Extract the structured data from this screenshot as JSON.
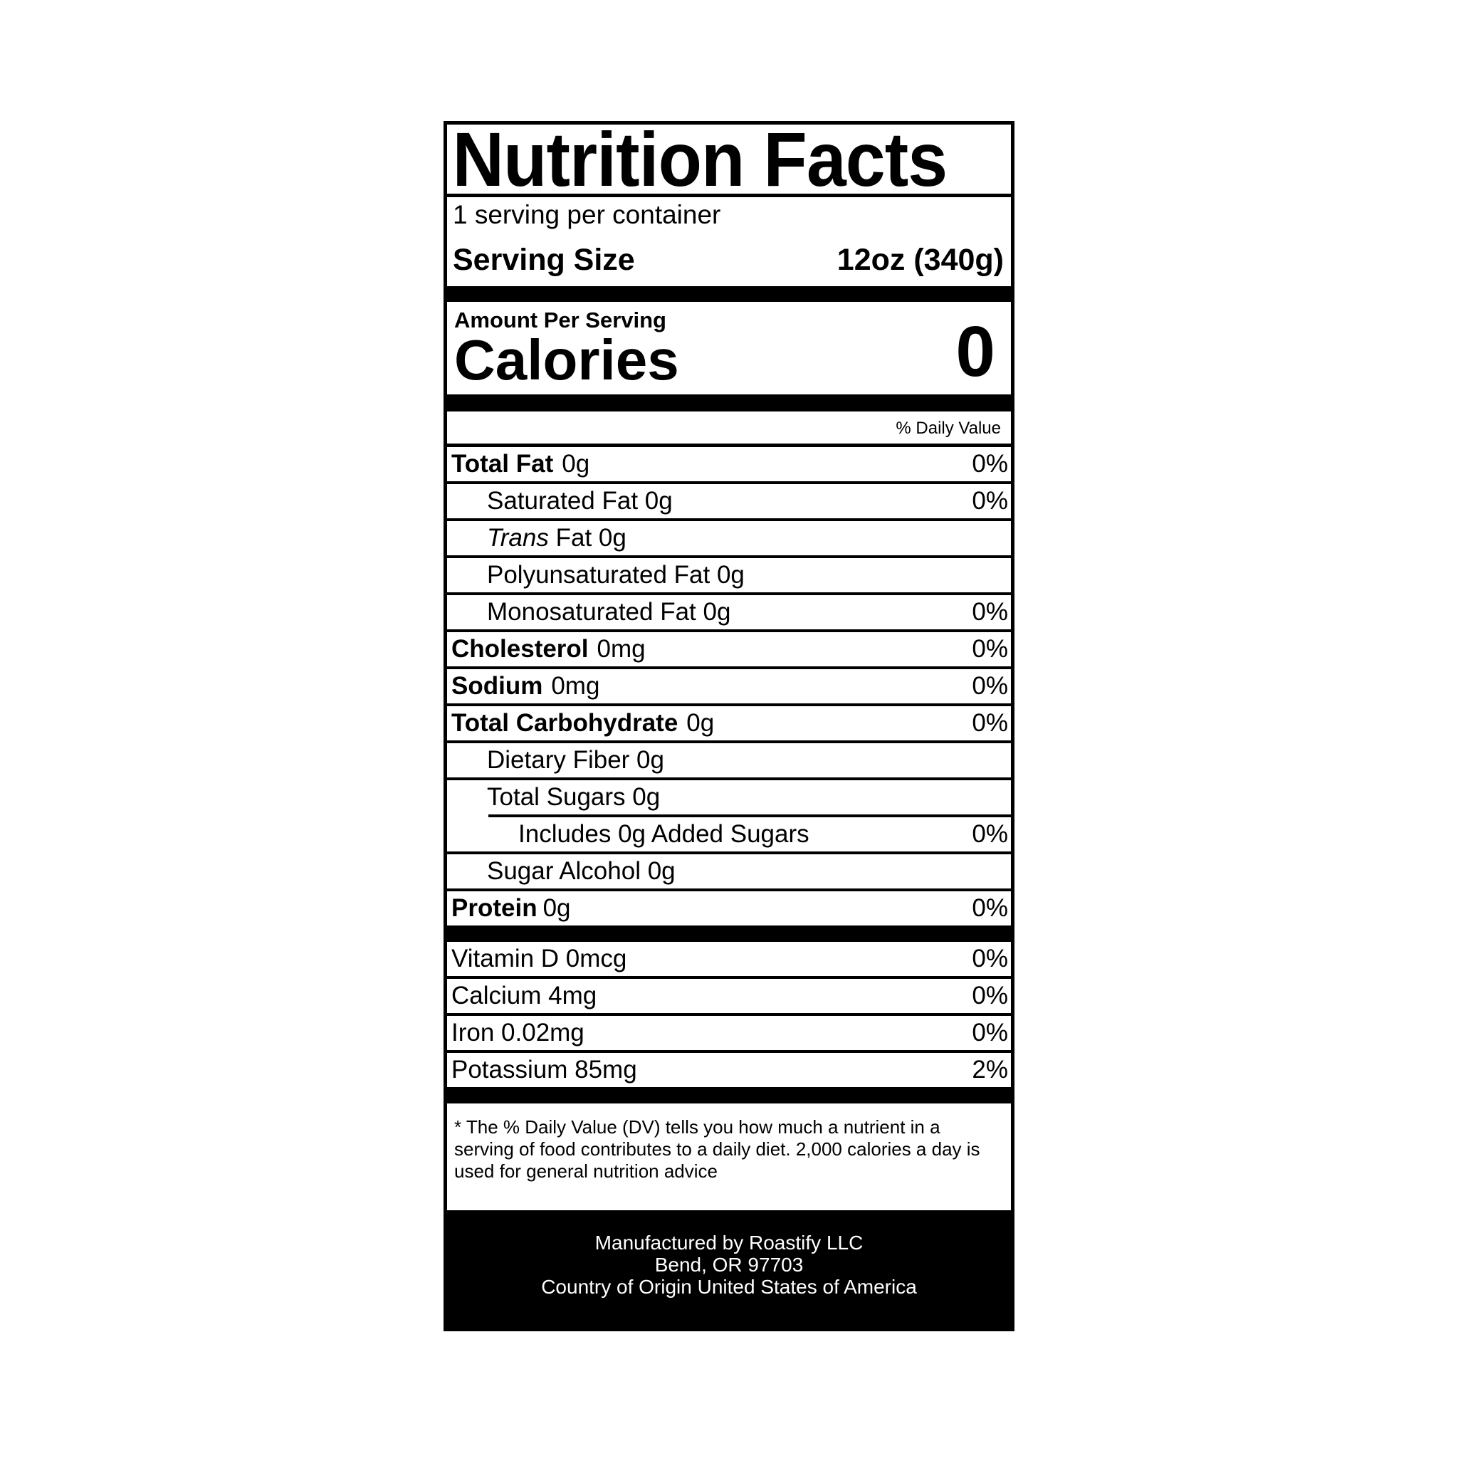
{
  "title": "Nutrition Facts",
  "servings_per_container": "1 serving per container",
  "serving_size_label": "Serving Size",
  "serving_size_value": "12oz (340g)",
  "amount_per_serving": "Amount Per Serving",
  "calories_label": "Calories",
  "calories_value": "0",
  "daily_value_header": "% Daily Value",
  "nutrients": [
    {
      "name": "Total Fat",
      "amount": "0g",
      "dv": "0%"
    },
    {
      "name": "Saturated Fat 0g",
      "dv": "0%"
    },
    {
      "name_italic": "Trans",
      "name": "Fat 0g",
      "dv": ""
    },
    {
      "name": "Polyunsaturated Fat 0g",
      "dv": ""
    },
    {
      "name": "Monosaturated Fat 0g",
      "dv": "0%"
    },
    {
      "name": "Cholesterol",
      "amount": "0mg",
      "dv": "0%"
    },
    {
      "name": "Sodium",
      "amount": "0mg",
      "dv": "0%"
    },
    {
      "name": "Total Carbohydrate",
      "amount": "0g",
      "dv": "0%"
    },
    {
      "name": "Dietary Fiber 0g",
      "dv": ""
    },
    {
      "name": "Total Sugars 0g",
      "dv": ""
    },
    {
      "name": "Includes 0g Added Sugars",
      "dv": "0%"
    },
    {
      "name": "Sugar Alcohol 0g",
      "dv": ""
    },
    {
      "name": "Protein",
      "amount": "0g",
      "dv": "0%"
    }
  ],
  "vitamins": [
    {
      "name": "Vitamin D 0mcg",
      "dv": "0%"
    },
    {
      "name": "Calcium 4mg",
      "dv": "0%"
    },
    {
      "name": "Iron 0.02mg",
      "dv": "0%"
    },
    {
      "name": "Potassium 85mg",
      "dv": "2%"
    }
  ],
  "footnote": "* The % Daily Value (DV) tells you how much a nutrient in a serving of food contributes to a daily diet. 2,000 calories a day is used for general nutrition advice",
  "manufacturer": [
    "Manufactured by Roastify LLC",
    "Bend, OR 97703",
    "Country of Origin United States of America"
  ]
}
